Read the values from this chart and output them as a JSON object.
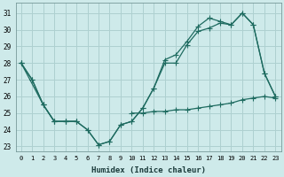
{
  "xlabel": "Humidex (Indice chaleur)",
  "background_color": "#ceeaea",
  "grid_color": "#aed0d0",
  "line_color": "#1e6b60",
  "line1_x": [
    0,
    1,
    2,
    3,
    4,
    5,
    6,
    7,
    8,
    9,
    10,
    11,
    12,
    13,
    14,
    15,
    16,
    17,
    18,
    19,
    20,
    21,
    22,
    23
  ],
  "line1_y": [
    28.0,
    27.0,
    25.5,
    24.5,
    24.5,
    24.5,
    24.0,
    23.1,
    23.3,
    24.3,
    24.5,
    25.3,
    26.5,
    28.2,
    28.5,
    29.3,
    30.2,
    30.7,
    30.5,
    30.3,
    31.0,
    30.3,
    27.4,
    26.0
  ],
  "line2_x": [
    0,
    1,
    2,
    3,
    4,
    5,
    6,
    7,
    8,
    9,
    10,
    11,
    12,
    13,
    14,
    15,
    16,
    17,
    18,
    19,
    20,
    21,
    22,
    23
  ],
  "line2_y": [
    28.0,
    27.0,
    25.5,
    24.5,
    24.5,
    24.5,
    24.0,
    23.1,
    23.3,
    24.3,
    24.5,
    25.3,
    26.5,
    28.0,
    28.0,
    29.1,
    29.9,
    30.1,
    30.4,
    30.3,
    31.0,
    30.3,
    27.4,
    26.0
  ],
  "line3_x": [
    0,
    1,
    2,
    3,
    4,
    5,
    6,
    7,
    8,
    9,
    10,
    11,
    12,
    13,
    14,
    15,
    16,
    17,
    18,
    19,
    20,
    21,
    22,
    23
  ],
  "line3_y": [
    28.0,
    null,
    25.5,
    24.5,
    24.5,
    24.5,
    null,
    null,
    null,
    null,
    25.0,
    25.0,
    25.1,
    25.1,
    25.2,
    25.2,
    25.3,
    25.4,
    25.5,
    25.6,
    25.8,
    25.9,
    26.0,
    25.9
  ],
  "ylim": [
    22.7,
    31.6
  ],
  "yticks": [
    23,
    24,
    25,
    26,
    27,
    28,
    29,
    30,
    31
  ],
  "xticks": [
    0,
    1,
    2,
    3,
    4,
    5,
    6,
    7,
    8,
    9,
    10,
    11,
    12,
    13,
    14,
    15,
    16,
    17,
    18,
    19,
    20,
    21,
    22,
    23
  ]
}
